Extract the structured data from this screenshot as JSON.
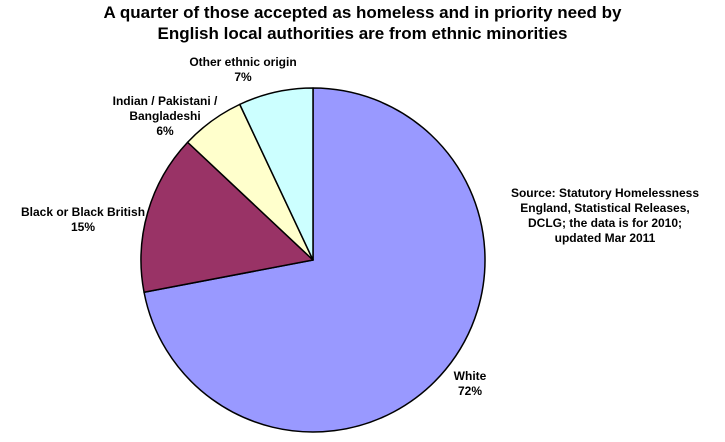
{
  "title_lines": [
    "A quarter of those accepted as homeless and in priority need by",
    "English local authorities are from ethnic minorities"
  ],
  "source_lines": [
    "Source: Statutory Homelessness",
    "England, Statistical Releases,",
    "DCLG; the data is for 2010;",
    "updated Mar 2011"
  ],
  "chart_data": {
    "type": "pie",
    "title": "A quarter of those accepted as homeless and in priority need by English local authorities are from ethnic minorities",
    "start": "12 o'clock",
    "direction": "clockwise",
    "slices": [
      {
        "label_lines": [
          "White"
        ],
        "value_label": "72%",
        "value": 72,
        "color": "#9999ff"
      },
      {
        "label_lines": [
          "Black or Black British"
        ],
        "value_label": "15%",
        "value": 15,
        "color": "#993366"
      },
      {
        "label_lines": [
          "Indian / Pakistani /",
          "Bangladeshi"
        ],
        "value_label": "6%",
        "value": 6,
        "color": "#ffffcc"
      },
      {
        "label_lines": [
          "Other ethnic origin"
        ],
        "value_label": "7%",
        "value": 7,
        "color": "#ccffff"
      }
    ]
  }
}
